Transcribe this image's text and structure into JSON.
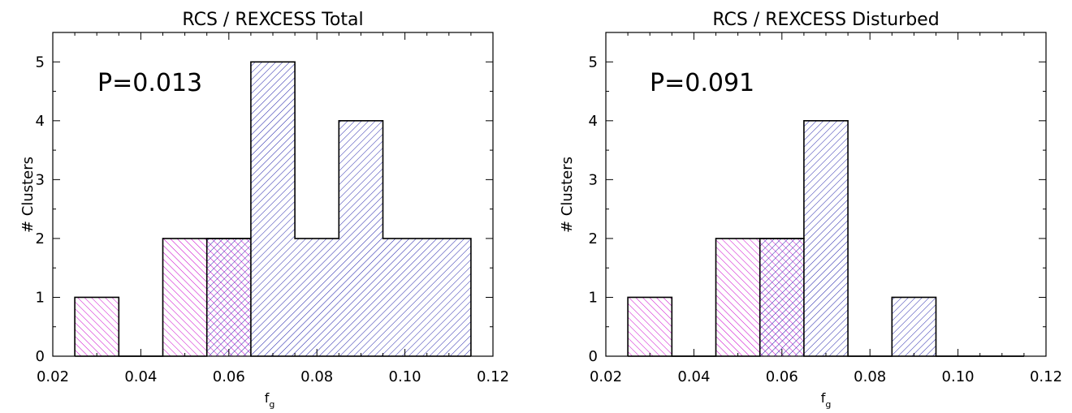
{
  "chart_data": [
    {
      "type": "bar",
      "title": "RCS / REXCESS Total",
      "xlabel": "f",
      "xlabel_sub": "g",
      "ylabel": "# Clusters",
      "annotation": "P=0.013",
      "xlim": [
        0.02,
        0.12
      ],
      "ylim": [
        0,
        5.5
      ],
      "xticks": [
        "0.02",
        "0.04",
        "0.06",
        "0.08",
        "0.10",
        "0.12"
      ],
      "yticks": [
        "0",
        "1",
        "2",
        "3",
        "4",
        "5"
      ],
      "bin_width": 0.01,
      "bin_centers": [
        0.03,
        0.04,
        0.05,
        0.06,
        0.07,
        0.08,
        0.09,
        0.1,
        0.11
      ],
      "series": [
        {
          "color": "#cc00cc",
          "hatch": "backslash",
          "values": [
            1,
            0,
            2,
            2,
            0,
            0,
            0,
            0,
            0
          ]
        },
        {
          "color": "#2222aa",
          "hatch": "slash",
          "values": [
            0,
            0,
            0,
            2,
            5,
            2,
            4,
            2,
            2
          ]
        }
      ]
    },
    {
      "type": "bar",
      "title": "RCS / REXCESS Disturbed",
      "xlabel": "f",
      "xlabel_sub": "g",
      "ylabel": "# Clusters",
      "annotation": "P=0.091",
      "xlim": [
        0.02,
        0.12
      ],
      "ylim": [
        0,
        5.5
      ],
      "xticks": [
        "0.02",
        "0.04",
        "0.06",
        "0.08",
        "0.10",
        "0.12"
      ],
      "yticks": [
        "0",
        "1",
        "2",
        "3",
        "4",
        "5"
      ],
      "bin_width": 0.01,
      "bin_centers": [
        0.03,
        0.04,
        0.05,
        0.06,
        0.07,
        0.08,
        0.09,
        0.1,
        0.11
      ],
      "series": [
        {
          "color": "#cc00cc",
          "hatch": "backslash",
          "values": [
            1,
            0,
            2,
            2,
            0,
            0,
            0,
            0,
            0
          ]
        },
        {
          "color": "#2222aa",
          "hatch": "slash",
          "values": [
            0,
            0,
            0,
            2,
            4,
            0,
            1,
            0,
            0
          ]
        }
      ]
    }
  ]
}
